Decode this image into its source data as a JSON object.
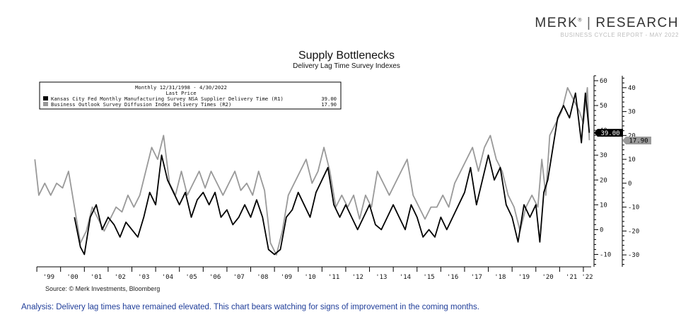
{
  "brand": {
    "name": "MERK",
    "mark": "®",
    "divider": "|",
    "right": "RESEARCH",
    "sub": "BUSINESS CYCLE REPORT - MAY 2022"
  },
  "source": "Source: © Merk Investments, Bloomberg",
  "analysis": "Analysis: Delivery lag times have remained elevated. This chart bears watching for signs of improvement in the coming months.",
  "chart_data": {
    "type": "line",
    "title": "Supply Bottlenecks",
    "subtitle": "Delivery Lag Time Survey Indexes",
    "legend": {
      "header": "Monthly 12/31/1998 - 4/30/2022",
      "subheader": "Last Price",
      "placement": "top-left"
    },
    "x_range": [
      "1998-12-31",
      "2022-04-30"
    ],
    "x_tick_labels": [
      "'99",
      "'00",
      "'01",
      "'02",
      "'03",
      "'04",
      "'05",
      "'06",
      "'07",
      "'08",
      "'09",
      "'10",
      "'11",
      "'12",
      "'13",
      "'14",
      "'15",
      "'16",
      "'17",
      "'18",
      "'19",
      "'20",
      "'21",
      "'22"
    ],
    "axes": {
      "R1": {
        "range": [
          -15,
          62
        ],
        "ticks": [
          -10,
          0,
          10,
          20,
          30,
          40,
          50,
          60
        ]
      },
      "R2": {
        "range": [
          -35,
          45
        ],
        "ticks": [
          -30,
          -20,
          -10,
          0,
          10,
          20,
          30,
          40
        ]
      }
    },
    "grid": false,
    "series": [
      {
        "name": "Kansas City Fed Monthly Manufacturing Survey NSA Supplier Delivery Time",
        "axis": "R1",
        "color": "#000000",
        "last_price": "39.00",
        "points": [
          [
            "2000-08",
            5
          ],
          [
            "2000-11",
            -7
          ],
          [
            "2001-01",
            -10
          ],
          [
            "2001-04",
            5
          ],
          [
            "2001-07",
            10
          ],
          [
            "2001-10",
            0
          ],
          [
            "2002-01",
            5
          ],
          [
            "2002-04",
            2
          ],
          [
            "2002-07",
            -3
          ],
          [
            "2002-10",
            3
          ],
          [
            "2003-01",
            0
          ],
          [
            "2003-04",
            -3
          ],
          [
            "2003-07",
            5
          ],
          [
            "2003-10",
            15
          ],
          [
            "2004-01",
            10
          ],
          [
            "2004-04",
            30
          ],
          [
            "2004-07",
            20
          ],
          [
            "2004-10",
            15
          ],
          [
            "2005-01",
            10
          ],
          [
            "2005-04",
            15
          ],
          [
            "2005-07",
            5
          ],
          [
            "2005-10",
            12
          ],
          [
            "2006-01",
            15
          ],
          [
            "2006-04",
            10
          ],
          [
            "2006-07",
            15
          ],
          [
            "2006-10",
            5
          ],
          [
            "2007-01",
            8
          ],
          [
            "2007-04",
            2
          ],
          [
            "2007-07",
            5
          ],
          [
            "2007-10",
            10
          ],
          [
            "2008-01",
            5
          ],
          [
            "2008-04",
            12
          ],
          [
            "2008-07",
            5
          ],
          [
            "2008-10",
            -8
          ],
          [
            "2009-01",
            -10
          ],
          [
            "2009-04",
            -8
          ],
          [
            "2009-07",
            5
          ],
          [
            "2009-10",
            8
          ],
          [
            "2010-01",
            15
          ],
          [
            "2010-04",
            10
          ],
          [
            "2010-07",
            5
          ],
          [
            "2010-10",
            15
          ],
          [
            "2011-01",
            20
          ],
          [
            "2011-04",
            25
          ],
          [
            "2011-07",
            10
          ],
          [
            "2011-10",
            5
          ],
          [
            "2012-01",
            10
          ],
          [
            "2012-04",
            5
          ],
          [
            "2012-07",
            0
          ],
          [
            "2012-10",
            5
          ],
          [
            "2013-01",
            10
          ],
          [
            "2013-04",
            2
          ],
          [
            "2013-07",
            0
          ],
          [
            "2013-10",
            5
          ],
          [
            "2014-01",
            10
          ],
          [
            "2014-04",
            5
          ],
          [
            "2014-07",
            0
          ],
          [
            "2014-10",
            10
          ],
          [
            "2015-01",
            5
          ],
          [
            "2015-04",
            -3
          ],
          [
            "2015-07",
            0
          ],
          [
            "2015-10",
            -3
          ],
          [
            "2016-01",
            5
          ],
          [
            "2016-04",
            0
          ],
          [
            "2016-07",
            5
          ],
          [
            "2016-10",
            10
          ],
          [
            "2017-01",
            15
          ],
          [
            "2017-04",
            25
          ],
          [
            "2017-07",
            10
          ],
          [
            "2017-10",
            20
          ],
          [
            "2018-01",
            30
          ],
          [
            "2018-04",
            20
          ],
          [
            "2018-07",
            25
          ],
          [
            "2018-10",
            10
          ],
          [
            "2019-01",
            5
          ],
          [
            "2019-04",
            -5
          ],
          [
            "2019-07",
            10
          ],
          [
            "2019-10",
            5
          ],
          [
            "2020-01",
            10
          ],
          [
            "2020-03",
            -5
          ],
          [
            "2020-05",
            15
          ],
          [
            "2020-07",
            20
          ],
          [
            "2020-09",
            30
          ],
          [
            "2020-12",
            45
          ],
          [
            "2021-03",
            50
          ],
          [
            "2021-06",
            45
          ],
          [
            "2021-09",
            55
          ],
          [
            "2021-12",
            35
          ],
          [
            "2022-02",
            55
          ],
          [
            "2022-04",
            39
          ]
        ]
      },
      {
        "name": "Business Outlook Survey Diffusion Index Delivery Times",
        "axis": "R2",
        "color": "#999999",
        "last_price": "17.90",
        "points": [
          [
            "1998-12",
            10
          ],
          [
            "1999-02",
            -5
          ],
          [
            "1999-05",
            0
          ],
          [
            "1999-08",
            -5
          ],
          [
            "1999-11",
            0
          ],
          [
            "2000-02",
            -2
          ],
          [
            "2000-05",
            5
          ],
          [
            "2000-08",
            -10
          ],
          [
            "2000-11",
            -25
          ],
          [
            "2001-02",
            -20
          ],
          [
            "2001-05",
            -10
          ],
          [
            "2001-08",
            -15
          ],
          [
            "2001-11",
            -20
          ],
          [
            "2002-02",
            -15
          ],
          [
            "2002-05",
            -10
          ],
          [
            "2002-08",
            -12
          ],
          [
            "2002-11",
            -5
          ],
          [
            "2003-02",
            -10
          ],
          [
            "2003-05",
            -5
          ],
          [
            "2003-08",
            5
          ],
          [
            "2003-11",
            15
          ],
          [
            "2004-02",
            10
          ],
          [
            "2004-05",
            20
          ],
          [
            "2004-08",
            0
          ],
          [
            "2004-11",
            -5
          ],
          [
            "2005-02",
            5
          ],
          [
            "2005-05",
            -5
          ],
          [
            "2005-08",
            0
          ],
          [
            "2005-11",
            5
          ],
          [
            "2006-02",
            -2
          ],
          [
            "2006-05",
            5
          ],
          [
            "2006-08",
            0
          ],
          [
            "2006-11",
            -5
          ],
          [
            "2007-02",
            0
          ],
          [
            "2007-05",
            5
          ],
          [
            "2007-08",
            -3
          ],
          [
            "2007-11",
            0
          ],
          [
            "2008-02",
            -5
          ],
          [
            "2008-05",
            5
          ],
          [
            "2008-08",
            -3
          ],
          [
            "2008-11",
            -25
          ],
          [
            "2009-02",
            -30
          ],
          [
            "2009-05",
            -20
          ],
          [
            "2009-08",
            -5
          ],
          [
            "2009-11",
            0
          ],
          [
            "2010-02",
            5
          ],
          [
            "2010-05",
            10
          ],
          [
            "2010-08",
            0
          ],
          [
            "2010-11",
            5
          ],
          [
            "2011-02",
            15
          ],
          [
            "2011-05",
            5
          ],
          [
            "2011-08",
            -10
          ],
          [
            "2011-11",
            -5
          ],
          [
            "2012-02",
            -10
          ],
          [
            "2012-05",
            -5
          ],
          [
            "2012-08",
            -15
          ],
          [
            "2012-11",
            -5
          ],
          [
            "2013-02",
            -10
          ],
          [
            "2013-05",
            5
          ],
          [
            "2013-08",
            0
          ],
          [
            "2013-11",
            -5
          ],
          [
            "2014-02",
            0
          ],
          [
            "2014-05",
            5
          ],
          [
            "2014-08",
            10
          ],
          [
            "2014-11",
            -5
          ],
          [
            "2015-02",
            -10
          ],
          [
            "2015-05",
            -15
          ],
          [
            "2015-08",
            -10
          ],
          [
            "2015-11",
            -10
          ],
          [
            "2016-02",
            -5
          ],
          [
            "2016-05",
            -10
          ],
          [
            "2016-08",
            0
          ],
          [
            "2016-11",
            5
          ],
          [
            "2017-02",
            10
          ],
          [
            "2017-05",
            15
          ],
          [
            "2017-08",
            5
          ],
          [
            "2017-11",
            15
          ],
          [
            "2018-02",
            20
          ],
          [
            "2018-05",
            10
          ],
          [
            "2018-08",
            5
          ],
          [
            "2018-11",
            -5
          ],
          [
            "2019-02",
            -10
          ],
          [
            "2019-05",
            -20
          ],
          [
            "2019-08",
            -10
          ],
          [
            "2019-11",
            -5
          ],
          [
            "2020-02",
            -10
          ],
          [
            "2020-04",
            10
          ],
          [
            "2020-06",
            -5
          ],
          [
            "2020-08",
            20
          ],
          [
            "2020-11",
            25
          ],
          [
            "2021-02",
            30
          ],
          [
            "2021-05",
            40
          ],
          [
            "2021-08",
            35
          ],
          [
            "2021-11",
            30
          ],
          [
            "2022-01",
            25
          ],
          [
            "2022-03",
            40
          ],
          [
            "2022-04",
            18
          ]
        ]
      }
    ]
  }
}
